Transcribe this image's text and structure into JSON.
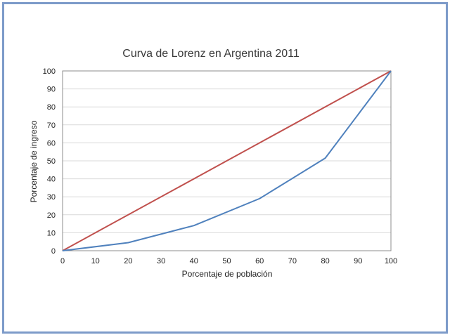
{
  "chart_data": {
    "type": "line",
    "title": "Curva de Lorenz en Argentina 2011",
    "xlabel": "Porcentaje de población",
    "ylabel": "Porcentaje de ingreso",
    "xlim": [
      0,
      100
    ],
    "ylim": [
      0,
      100
    ],
    "xticks": [
      0,
      10,
      20,
      30,
      40,
      50,
      60,
      70,
      80,
      90,
      100
    ],
    "yticks": [
      0,
      10,
      20,
      30,
      40,
      50,
      60,
      70,
      80,
      90,
      100
    ],
    "grid": true,
    "legend": "none",
    "series": [
      {
        "color": "#c0504d",
        "x": [
          0,
          100
        ],
        "y": [
          0,
          100
        ]
      },
      {
        "color": "#4f81bd",
        "x": [
          0,
          20,
          40,
          60,
          80,
          100
        ],
        "y": [
          0,
          4.5,
          14,
          29,
          51.5,
          100
        ]
      }
    ]
  }
}
